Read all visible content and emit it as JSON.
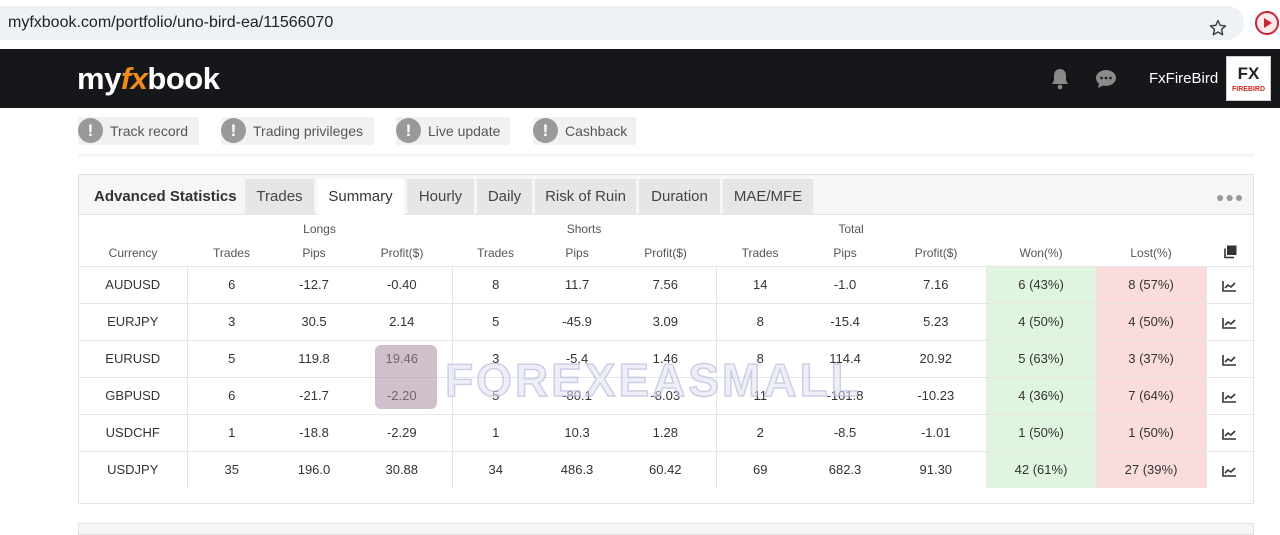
{
  "browser": {
    "url": "myfxbook.com/portfolio/uno-bird-ea/11566070"
  },
  "header": {
    "logo_left": "my",
    "logo_fx": "fx",
    "logo_right": "book",
    "username": "FxFireBird",
    "avatar_text": "FX",
    "avatar_subtext": "FIREBIRD"
  },
  "badges": [
    "Track record",
    "Trading privileges",
    "Live update",
    "Cashback"
  ],
  "stats": {
    "title": "Advanced Statistics",
    "tabs": [
      "Trades",
      "Summary",
      "Hourly",
      "Daily",
      "Risk of Ruin",
      "Duration",
      "MAE/MFE"
    ],
    "active_tab": "Summary",
    "group_headers": {
      "longs": "Longs",
      "shorts": "Shorts",
      "total": "Total"
    },
    "columns": {
      "currency": "Currency",
      "trades": "Trades",
      "pips": "Pips",
      "profit": "Profit($)",
      "won": "Won(%)",
      "lost": "Lost(%)"
    },
    "rows": [
      {
        "currency": "AUDUSD",
        "l_trades": "6",
        "l_pips": "-12.7",
        "l_profit": "-0.40",
        "s_trades": "8",
        "s_pips": "11.7",
        "s_profit": "7.56",
        "t_trades": "14",
        "t_pips": "-1.0",
        "t_profit": "7.16",
        "won": "6 (43%)",
        "lost": "8 (57%)"
      },
      {
        "currency": "EURJPY",
        "l_trades": "3",
        "l_pips": "30.5",
        "l_profit": "2.14",
        "s_trades": "5",
        "s_pips": "-45.9",
        "s_profit": "3.09",
        "t_trades": "8",
        "t_pips": "-15.4",
        "t_profit": "5.23",
        "won": "4 (50%)",
        "lost": "4 (50%)"
      },
      {
        "currency": "EURUSD",
        "l_trades": "5",
        "l_pips": "119.8",
        "l_profit": "19.46",
        "s_trades": "3",
        "s_pips": "-5.4",
        "s_profit": "1.46",
        "t_trades": "8",
        "t_pips": "114.4",
        "t_profit": "20.92",
        "won": "5 (63%)",
        "lost": "3 (37%)"
      },
      {
        "currency": "GBPUSD",
        "l_trades": "6",
        "l_pips": "-21.7",
        "l_profit": "-2.20",
        "s_trades": "5",
        "s_pips": "-80.1",
        "s_profit": "-8.03",
        "t_trades": "11",
        "t_pips": "-101.8",
        "t_profit": "-10.23",
        "won": "4 (36%)",
        "lost": "7 (64%)"
      },
      {
        "currency": "USDCHF",
        "l_trades": "1",
        "l_pips": "-18.8",
        "l_profit": "-2.29",
        "s_trades": "1",
        "s_pips": "10.3",
        "s_profit": "1.28",
        "t_trades": "2",
        "t_pips": "-8.5",
        "t_profit": "-1.01",
        "won": "1 (50%)",
        "lost": "1 (50%)"
      },
      {
        "currency": "USDJPY",
        "l_trades": "35",
        "l_pips": "196.0",
        "l_profit": "30.88",
        "s_trades": "34",
        "s_pips": "486.3",
        "s_profit": "60.42",
        "t_trades": "69",
        "t_pips": "682.3",
        "t_profit": "91.30",
        "won": "42 (61%)",
        "lost": "27 (39%)"
      }
    ]
  },
  "watermark": "FOREXEASMALL",
  "colors": {
    "header_bg": "#16171b",
    "logo_accent": "#f28c1b",
    "positive": "#1e9e3a",
    "negative": "#e04040",
    "won_bg": "#dff5df",
    "lost_bg": "#fadcdc"
  }
}
